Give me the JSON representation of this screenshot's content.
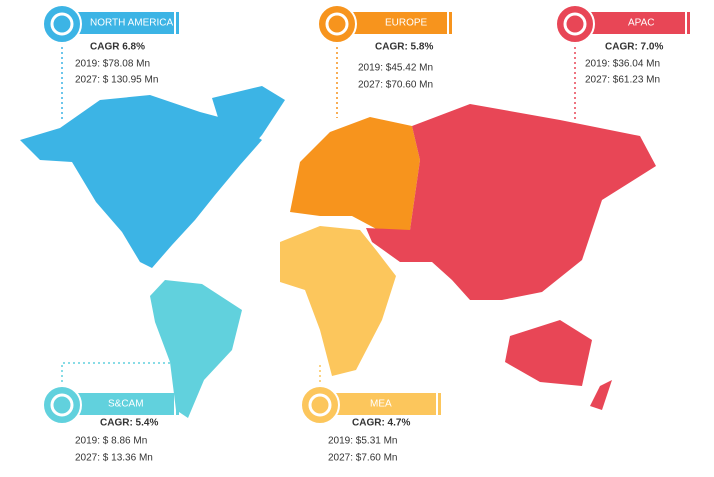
{
  "regions": [
    {
      "name": "NORTH AMERICA",
      "cagr": "CAGR 6.8%",
      "y2019": "2019: $78.08 Mn",
      "y2027": "2027: $ 130.95 Mn"
    },
    {
      "name": "EUROPE",
      "cagr": "CAGR: 5.8%",
      "y2019": "2019: $45.42 Mn",
      "y2027": "2027: $70.60 Mn"
    },
    {
      "name": "APAC",
      "cagr": "CAGR: 7.0%",
      "y2019": "2019: $36.04 Mn",
      "y2027": "2027: $61.23 Mn"
    },
    {
      "name": "S&CAM",
      "cagr": "CAGR: 5.4%",
      "y2019": "2019: $ 8.86 Mn",
      "y2027": "2027: $ 13.36 Mn"
    },
    {
      "name": "MEA",
      "cagr": "CAGR: 4.7%",
      "y2019": "2019: $5.31 Mn",
      "y2027": "2027: $7.60 Mn"
    }
  ]
}
